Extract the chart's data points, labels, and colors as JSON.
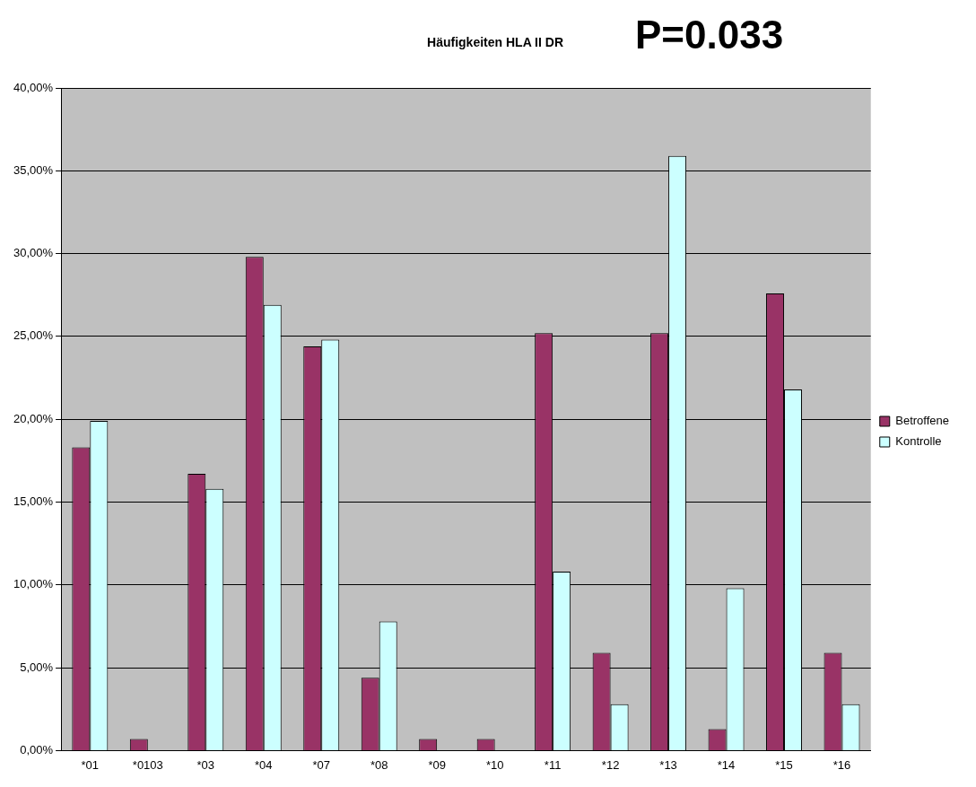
{
  "chart_data": {
    "type": "bar",
    "title": "Häufigkeiten HLA II DR",
    "annotations": [
      "P=0.033"
    ],
    "categories": [
      "*01",
      "*0103",
      "*03",
      "*04",
      "*07",
      "*08",
      "*09",
      "*10",
      "*11",
      "*12",
      "*13",
      "*14",
      "*15",
      "*16"
    ],
    "series": [
      {
        "name": "Betroffene",
        "color": "#993366",
        "values": [
          18.3,
          0.7,
          16.7,
          29.8,
          24.4,
          4.4,
          0.7,
          0.7,
          25.2,
          5.9,
          25.2,
          1.3,
          27.6,
          5.9
        ]
      },
      {
        "name": "Kontrolle",
        "color": "#ccffff",
        "values": [
          19.9,
          0,
          15.8,
          26.9,
          24.8,
          7.8,
          0,
          0,
          10.8,
          2.8,
          35.9,
          9.8,
          21.8,
          2.8
        ]
      }
    ],
    "ylim": [
      0,
      40
    ],
    "yticks": [
      {
        "value": 0,
        "label": "0,00%"
      },
      {
        "value": 5,
        "label": "5,00%"
      },
      {
        "value": 10,
        "label": "10,00%"
      },
      {
        "value": 15,
        "label": "15,00%"
      },
      {
        "value": 20,
        "label": "20,00%"
      },
      {
        "value": 25,
        "label": "25,00%"
      },
      {
        "value": 30,
        "label": "30,00%"
      },
      {
        "value": 35,
        "label": "35,00%"
      },
      {
        "value": 40,
        "label": "40,00%"
      }
    ],
    "grid": "y",
    "legend": "right"
  }
}
